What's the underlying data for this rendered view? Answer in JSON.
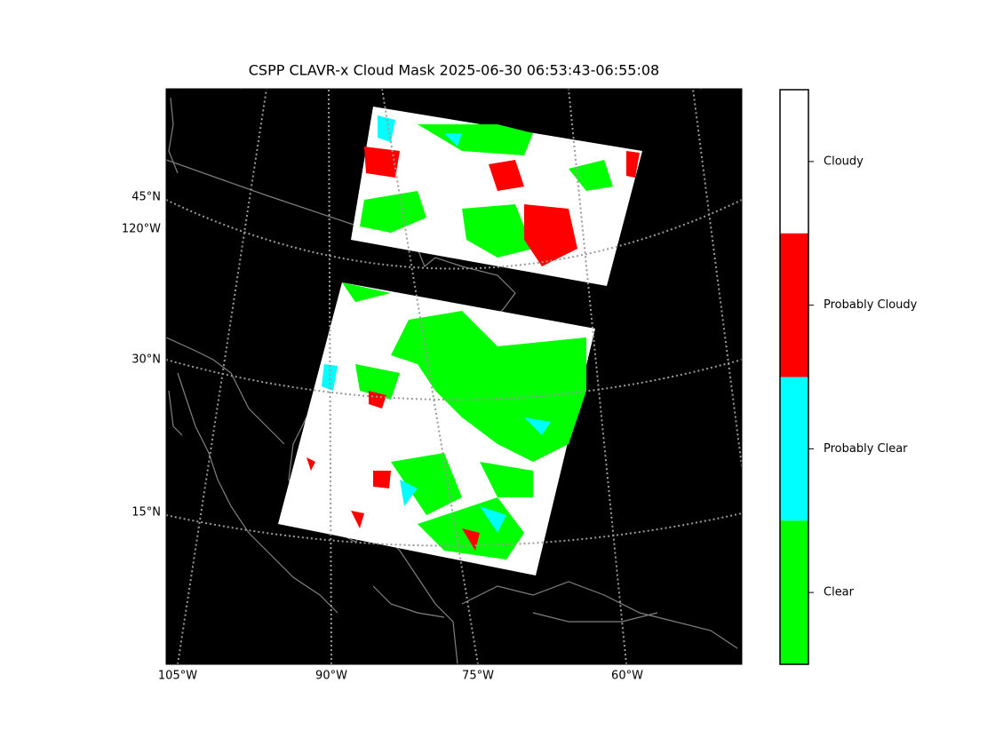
{
  "title": "CSPP CLAVR-x Cloud Mask 2025-06-30 06:53:43-06:55:08",
  "map": {
    "lat_labels": [
      "45°N",
      "30°N",
      "15°N"
    ],
    "lon_label_left": "120°W",
    "lon_labels_bottom": [
      "105°W",
      "90°W",
      "75°W",
      "60°W"
    ]
  },
  "legend": {
    "items": [
      {
        "label": "Cloudy",
        "color": "#ffffff"
      },
      {
        "label": "Probably Cloudy",
        "color": "#ff0000"
      },
      {
        "label": "Probably Clear",
        "color": "#00ffff"
      },
      {
        "label": "Clear",
        "color": "#00ff00"
      }
    ]
  }
}
